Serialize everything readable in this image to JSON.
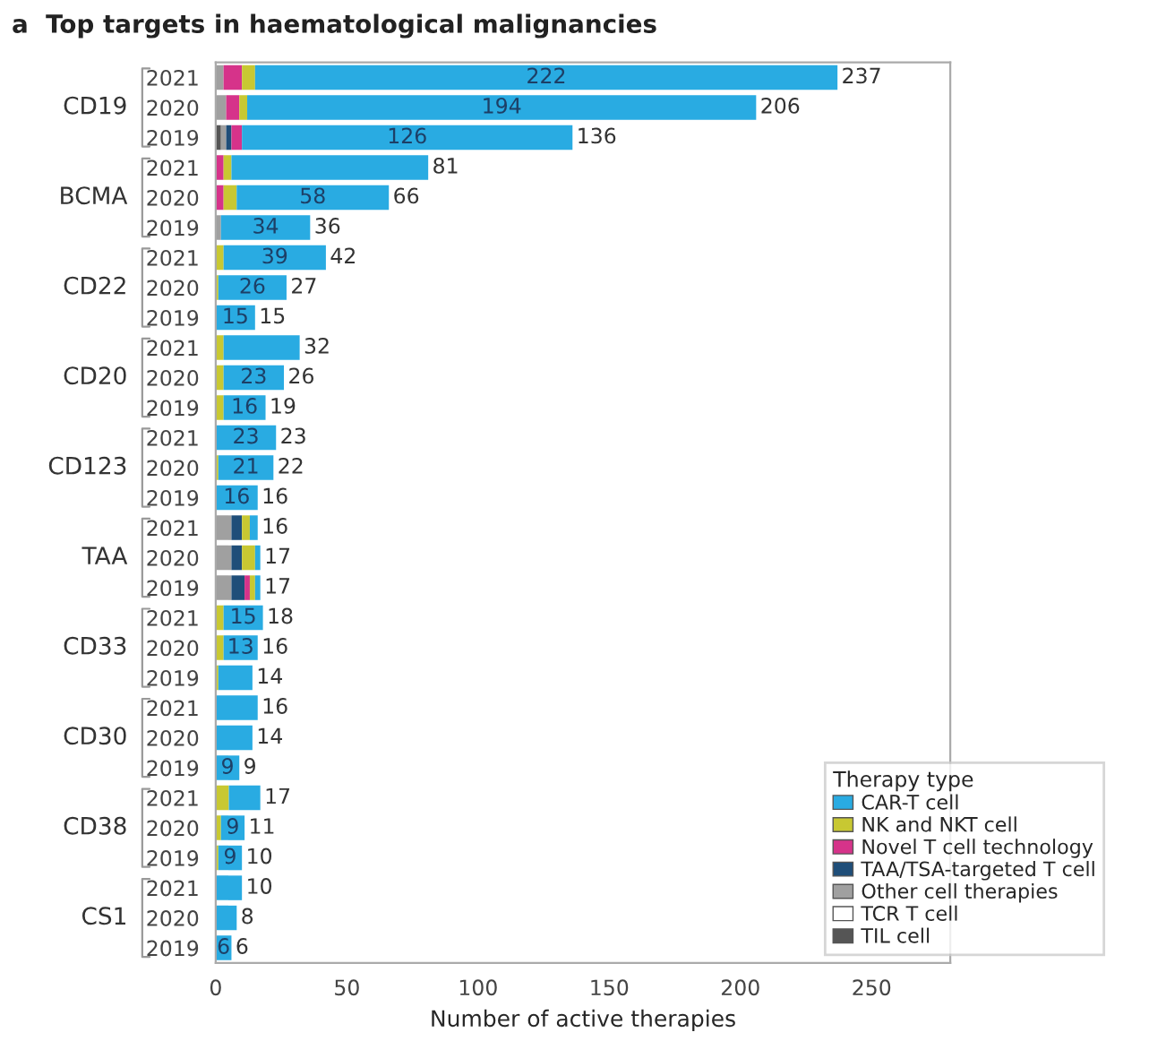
{
  "chart_data": {
    "type": "bar",
    "orientation": "horizontal",
    "stacked": true,
    "title": "a  Top targets in haematological malignancies",
    "xlabel": "Number of active therapies",
    "legend_title": "Therapy type",
    "legend": "bottom right",
    "grid": false,
    "categories": [
      "2021",
      "2020",
      "2019",
      "2021",
      "2020",
      "2019",
      "2021",
      "2020",
      "2019",
      "2021",
      "2020",
      "2019",
      "2021",
      "2020",
      "2019",
      "2021",
      "2020",
      "2019",
      "2021",
      "2020",
      "2019",
      "2021",
      "2020",
      "2019",
      "2021",
      "2020",
      "2019",
      "2021",
      "2020",
      "2019"
    ],
    "annotations": [
      "CD19",
      "BCMA",
      "CD22",
      "CD20",
      "CD123",
      "TAA",
      "CD33",
      "CD30",
      "CD38",
      "CS1"
    ],
    "xlim": [
      0,
      280
    ],
    "xticks": [
      0,
      50,
      100,
      150,
      200,
      250
    ],
    "series": [
      {
        "name": "TIL cell",
        "color": "#555555",
        "values": [
          0,
          0,
          2,
          0,
          0,
          0,
          0,
          0,
          0,
          0,
          0,
          0,
          0,
          0,
          0,
          0,
          0,
          0,
          0,
          0,
          0,
          0,
          0,
          0,
          0,
          0,
          0,
          0,
          0,
          0
        ]
      },
      {
        "name": "TCR T cell",
        "color": "#ffffff",
        "values": [
          0,
          0,
          0,
          0,
          0,
          0,
          0,
          0,
          0,
          0,
          0,
          0,
          0,
          0,
          0,
          0,
          0,
          0,
          0,
          0,
          0,
          0,
          0,
          0,
          0,
          0,
          0,
          0,
          0,
          0
        ]
      },
      {
        "name": "Other cell therapies",
        "color": "#a0a0a0",
        "values": [
          3,
          4,
          2,
          0,
          0,
          2,
          0,
          0,
          0,
          0,
          0,
          0,
          0,
          0,
          0,
          6,
          6,
          6,
          0,
          0,
          0,
          0,
          0,
          0,
          0,
          0,
          0,
          0,
          0,
          0
        ]
      },
      {
        "name": "TAA/TSA-targeted T cell",
        "color": "#1f4e79",
        "values": [
          0,
          0,
          2,
          0,
          0,
          0,
          0,
          0,
          0,
          0,
          0,
          0,
          0,
          0,
          0,
          4,
          4,
          5,
          0,
          0,
          0,
          0,
          0,
          0,
          0,
          0,
          0,
          0,
          0,
          0
        ]
      },
      {
        "name": "Novel T cell technology",
        "color": "#d6338a",
        "values": [
          7,
          5,
          4,
          3,
          3,
          0,
          0,
          0,
          0,
          0,
          0,
          0,
          0,
          0,
          0,
          0,
          0,
          2,
          0,
          0,
          0,
          0,
          0,
          0,
          0,
          0,
          0,
          0,
          0,
          0
        ]
      },
      {
        "name": "NK and NKT cell",
        "color": "#c8c832",
        "values": [
          5,
          3,
          0,
          3,
          5,
          0,
          3,
          1,
          0,
          3,
          3,
          3,
          0,
          1,
          0,
          3,
          5,
          2,
          3,
          3,
          1,
          0,
          0,
          0,
          5,
          2,
          1,
          0,
          0,
          0
        ]
      },
      {
        "name": "CAR-T cell",
        "color": "#29abe2",
        "values": [
          222,
          194,
          126,
          75,
          58,
          34,
          39,
          26,
          15,
          29,
          23,
          16,
          23,
          21,
          16,
          3,
          2,
          2,
          15,
          13,
          13,
          16,
          14,
          9,
          12,
          9,
          9,
          10,
          8,
          6
        ],
        "value_labels": [
          "222",
          "194",
          "126",
          null,
          "58",
          "34",
          "39",
          "26",
          "15",
          null,
          "23",
          "16",
          "23",
          "21",
          "16",
          null,
          null,
          null,
          "15",
          "13",
          null,
          null,
          null,
          "9",
          null,
          "9",
          "9",
          null,
          null,
          "6"
        ]
      }
    ],
    "totals": [
      "237",
      "206",
      "136",
      "81",
      "66",
      "36",
      "42",
      "27",
      "15",
      "32",
      "26",
      "19",
      "23",
      "22",
      "16",
      "16",
      "17",
      "17",
      "18",
      "16",
      "14",
      "16",
      "14",
      "9",
      "17",
      "11",
      "10",
      "10",
      "8",
      "6"
    ]
  }
}
